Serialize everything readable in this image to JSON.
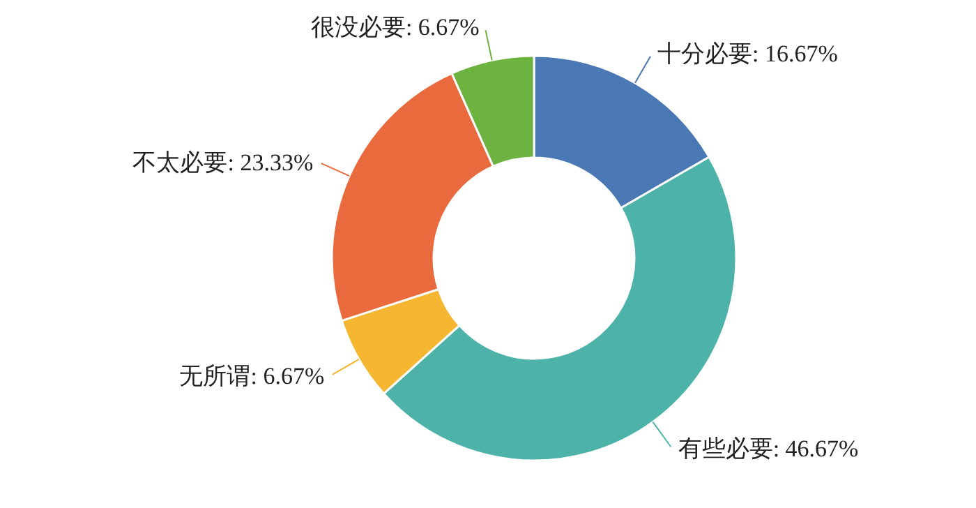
{
  "chart_data": {
    "type": "donut",
    "categories": [
      "十分必要",
      "有些必要",
      "无所谓",
      "不太必要",
      "很没必要"
    ],
    "values": [
      16.67,
      46.67,
      6.67,
      23.33,
      6.67
    ],
    "value_labels": [
      "16.67%",
      "46.67%",
      "6.67%",
      "23.33%",
      "6.67%"
    ],
    "colors": [
      "#4a78b4",
      "#4db3a8",
      "#f5b731",
      "#e96a3c",
      "#6db33f"
    ],
    "legend": false
  }
}
